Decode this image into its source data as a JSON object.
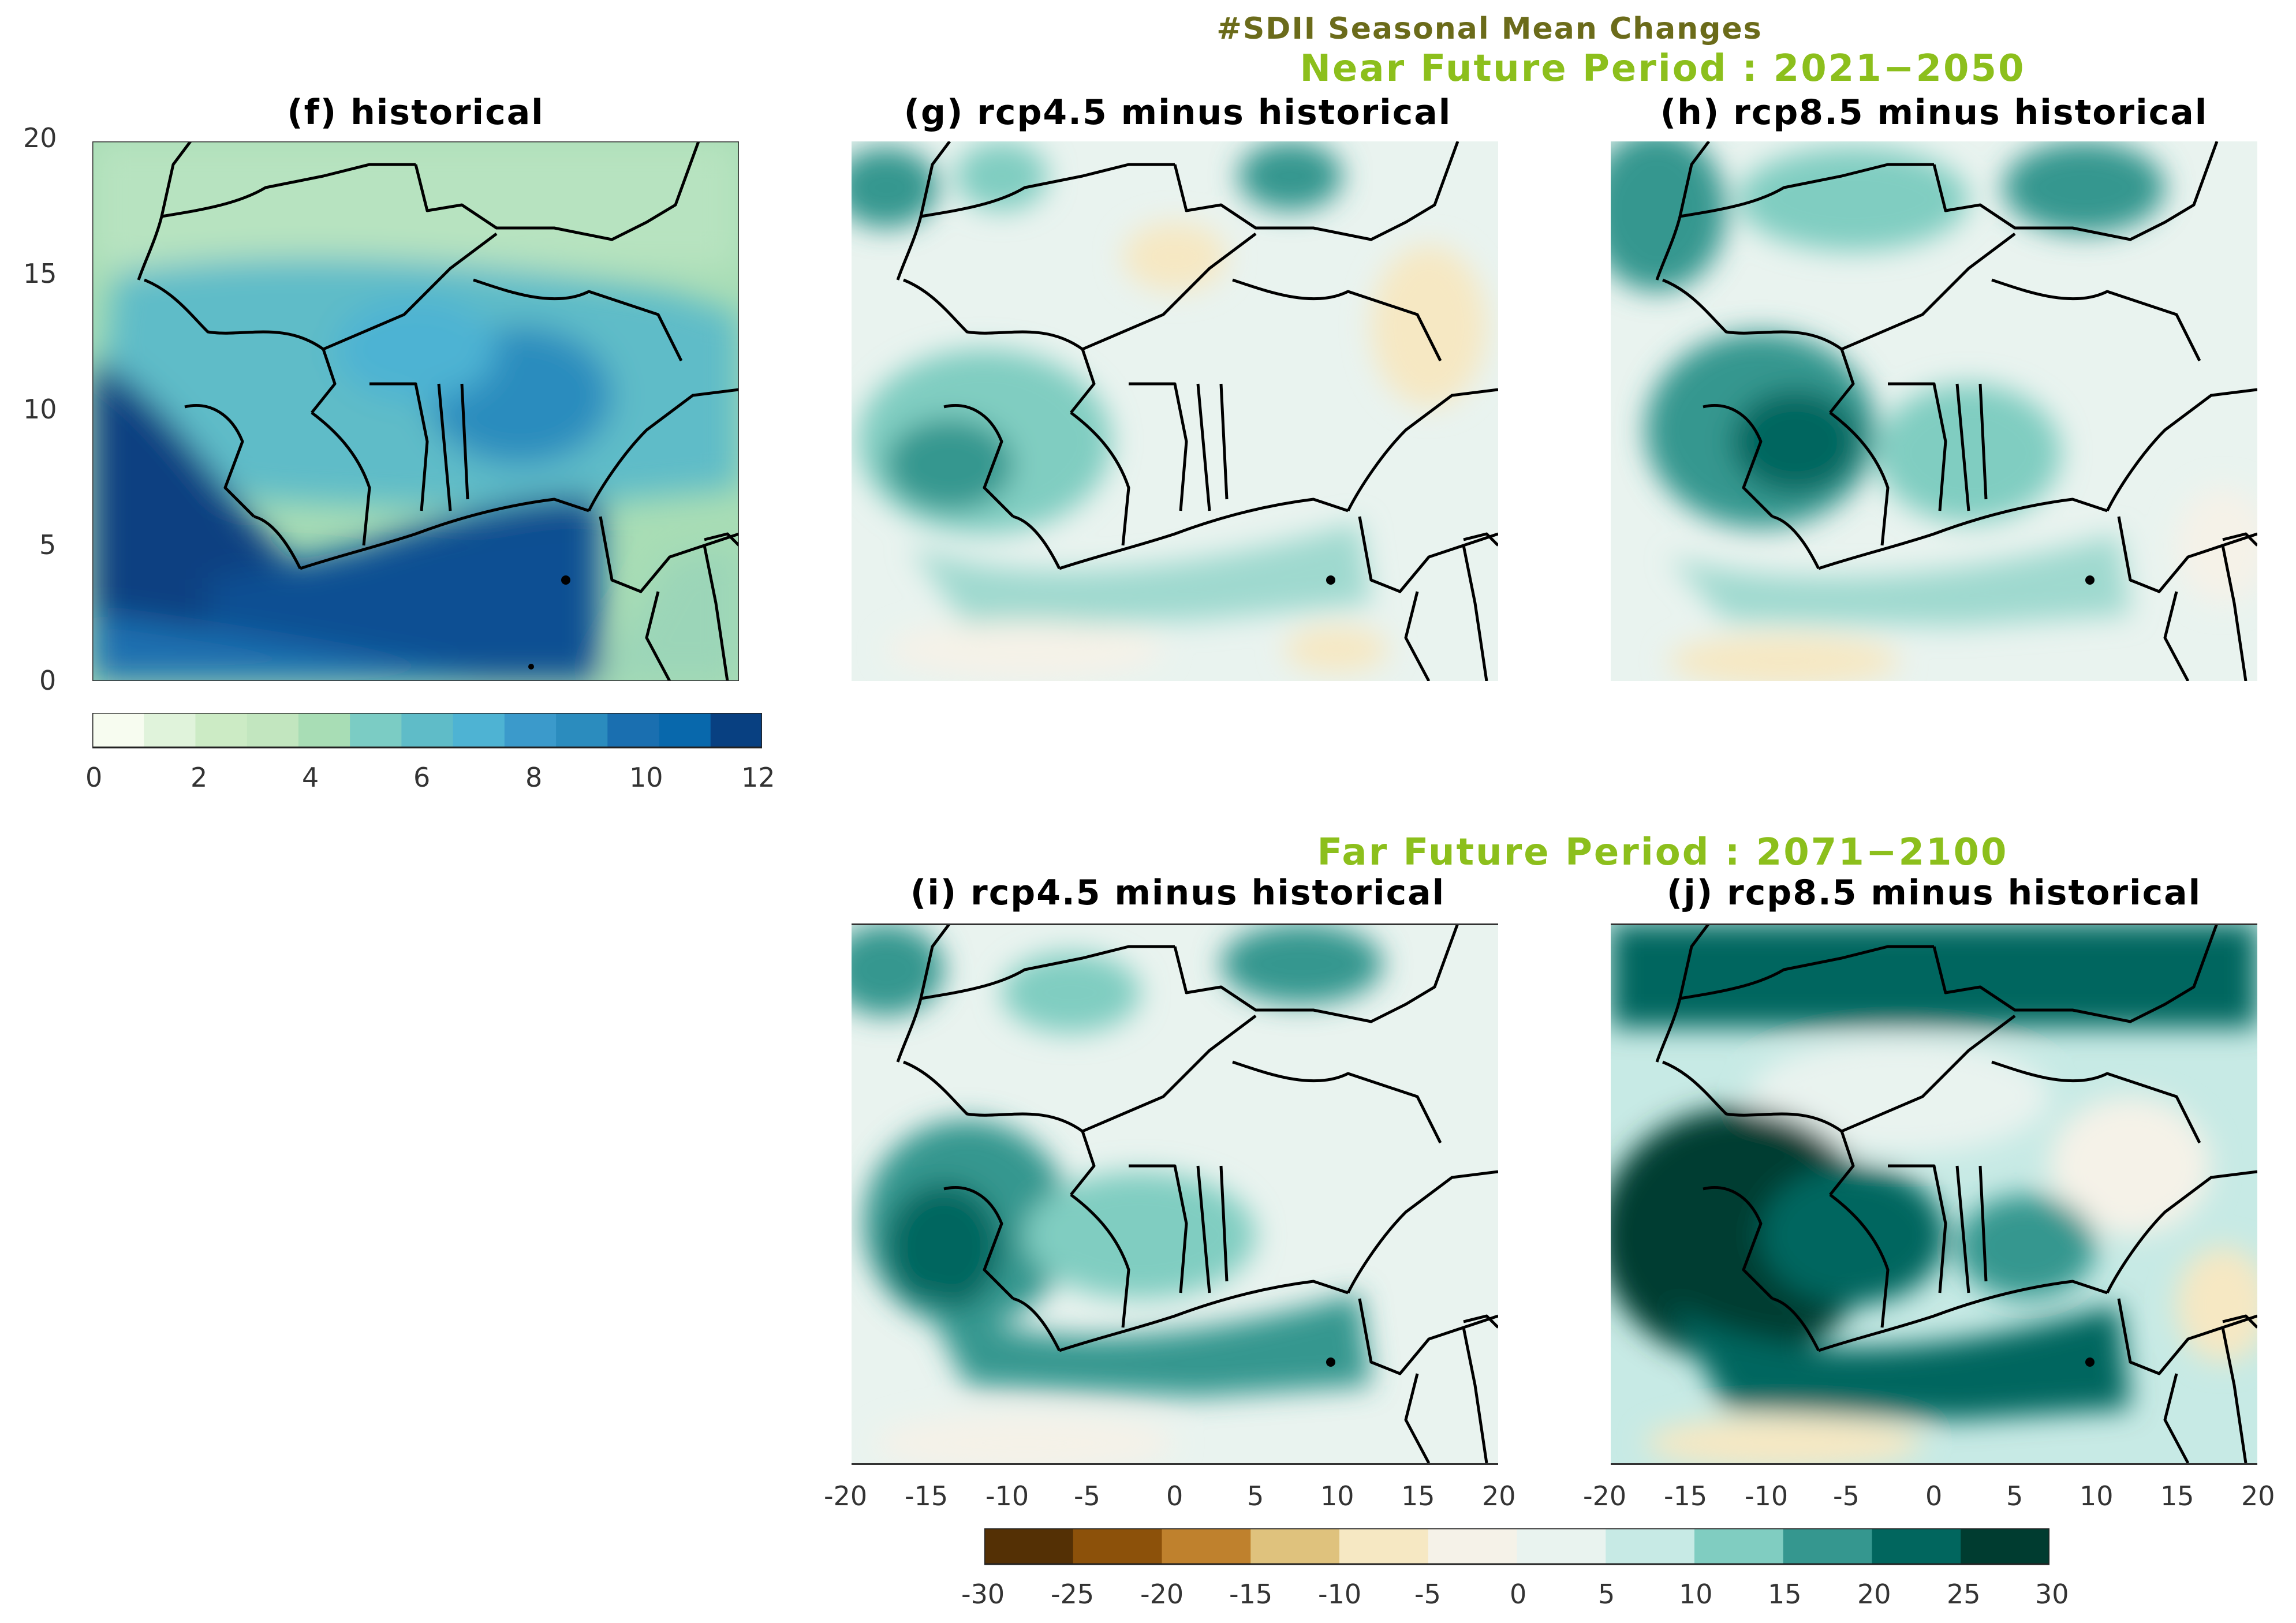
{
  "figure": {
    "suptitle": "#SDII Seasonal Mean Changes",
    "near_period": "Near Future Period : 2021−2050",
    "far_period": "Far Future Period : 2071−2100"
  },
  "panels": {
    "f": {
      "title": "(f) historical"
    },
    "g": {
      "title": "(g) rcp4.5 minus historical"
    },
    "h": {
      "title": "(h) rcp8.5 minus historical"
    },
    "i": {
      "title": "(i) rcp4.5 minus historical"
    },
    "j": {
      "title": "(j) rcp8.5 minus historical"
    }
  },
  "axes": {
    "y_ticks": [
      "20",
      "15",
      "10",
      "5",
      "0"
    ],
    "x_ticks": [
      "-20",
      "-15",
      "-10",
      "-5",
      "0",
      "5",
      "10",
      "15",
      "20"
    ]
  },
  "colorbars": {
    "historical": {
      "ticks": [
        "0",
        "2",
        "4",
        "6",
        "8",
        "10",
        "12"
      ],
      "colors": [
        "#f7fcf0",
        "#e0f3db",
        "#ccebc5",
        "#c2e6bf",
        "#a8ddb5",
        "#7bccc4",
        "#5fbcc8",
        "#4eb3d3",
        "#3b9acb",
        "#2b8cbe",
        "#1a6fb0",
        "#0868ac",
        "#084081"
      ]
    },
    "change": {
      "ticks": [
        "-30",
        "-25",
        "-20",
        "-15",
        "-10",
        "-5",
        "0",
        "5",
        "10",
        "15",
        "20",
        "25",
        "30"
      ],
      "colors": [
        "#543005",
        "#8c510a",
        "#bf812d",
        "#dfc27d",
        "#f6e8c3",
        "#f5f2e8",
        "#e9f3ef",
        "#c7eae5",
        "#80cdc1",
        "#35978f",
        "#01665e",
        "#003c30"
      ]
    }
  }
}
